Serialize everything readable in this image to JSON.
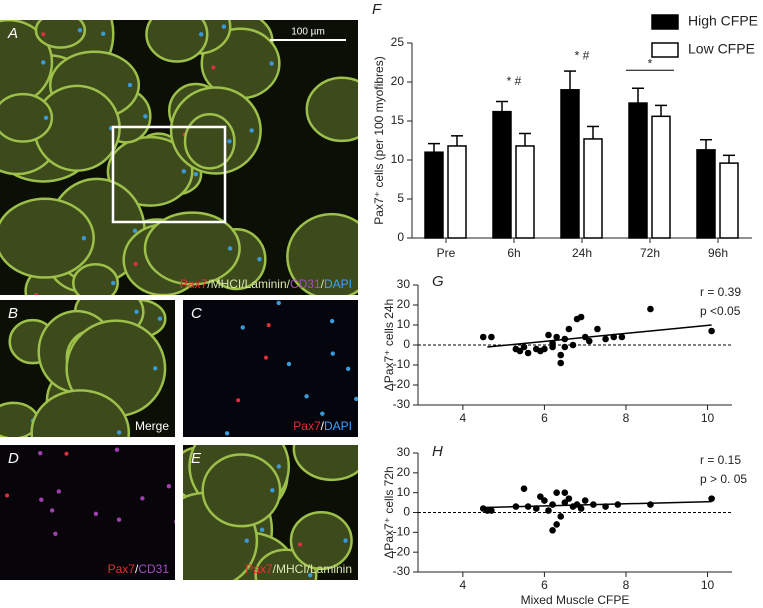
{
  "chart_data": [
    {
      "type": "bar",
      "panel_label": "F",
      "ylabel": "Pax7⁺ cells (per 100 myofibres)",
      "categories": [
        "Pre",
        "6h",
        "24h",
        "72h",
        "96h"
      ],
      "series": [
        {
          "name": "High CFPE",
          "color": "#000000",
          "values": [
            11.0,
            16.2,
            19.0,
            17.3,
            11.3
          ],
          "errors": [
            1.1,
            1.3,
            2.4,
            1.9,
            1.3
          ]
        },
        {
          "name": "Low CFPE",
          "color": "#ffffff",
          "values": [
            11.8,
            11.8,
            12.7,
            15.6,
            9.6
          ],
          "errors": [
            1.3,
            1.6,
            1.6,
            1.4,
            1.0
          ]
        }
      ],
      "ylim": [
        0,
        25
      ],
      "yticks": [
        0,
        5,
        10,
        15,
        20,
        25
      ],
      "legend": "top-right",
      "annotations": [
        {
          "text": "* #",
          "x": "6h",
          "y": 20
        },
        {
          "text": "* #",
          "x": "24h",
          "y": 23.3
        },
        {
          "text": "*",
          "x": "72h",
          "y": 21.5,
          "bracket": true
        }
      ]
    },
    {
      "type": "scatter",
      "panel_label": "G",
      "ylabel": "ΔPax7⁺ cells 24h",
      "x": [
        4.5,
        4.7,
        5.3,
        5.4,
        5.5,
        5.6,
        5.8,
        5.9,
        6.0,
        6.1,
        6.2,
        6.2,
        6.3,
        6.4,
        6.4,
        6.5,
        6.5,
        6.6,
        6.7,
        6.8,
        6.9,
        7.0,
        7.1,
        7.3,
        7.5,
        7.7,
        7.9,
        8.6,
        10.1
      ],
      "values": [
        4,
        4,
        -2,
        -3,
        -1,
        -4,
        -2,
        -3,
        -2,
        5,
        1,
        -1,
        4,
        -9,
        -5,
        -1,
        3,
        8,
        0,
        13,
        14,
        4,
        2,
        8,
        3,
        4,
        4,
        18,
        7
      ],
      "fit": {
        "x": [
          4.6,
          10.1
        ],
        "y": [
          -1,
          10
        ]
      },
      "stats": [
        "r = 0.39",
        "p <0.05"
      ],
      "xlim": [
        2.9,
        10.6
      ],
      "xticks": [
        4,
        6,
        8,
        10
      ],
      "ylim": [
        -30,
        30
      ],
      "yticks": [
        -30,
        -20,
        -10,
        0,
        10,
        20,
        30
      ],
      "zero_line": true
    },
    {
      "type": "scatter",
      "panel_label": "H",
      "ylabel": "ΔPax7⁺ cells 72h",
      "xlabel": "Mixed Muscle CFPE",
      "x": [
        4.5,
        4.6,
        4.7,
        5.3,
        5.5,
        5.6,
        5.8,
        5.9,
        6.0,
        6.1,
        6.2,
        6.2,
        6.3,
        6.3,
        6.4,
        6.5,
        6.5,
        6.6,
        6.7,
        6.8,
        6.9,
        7.0,
        7.2,
        7.5,
        7.8,
        8.6,
        10.1
      ],
      "values": [
        2,
        1,
        1,
        3,
        12,
        3,
        2,
        8,
        6,
        1,
        4,
        -9,
        10,
        -6,
        -2,
        10,
        5,
        7,
        3,
        4,
        2,
        6,
        4,
        3,
        4,
        4,
        7
      ],
      "fit": {
        "x": [
          4.5,
          10.1
        ],
        "y": [
          2.5,
          5.5
        ]
      },
      "stats": [
        "r = 0.15",
        "p > 0. 05"
      ],
      "xlim": [
        2.9,
        10.6
      ],
      "xticks": [
        4,
        6,
        8,
        10
      ],
      "ylim": [
        -30,
        30
      ],
      "yticks": [
        -30,
        -20,
        -10,
        0,
        10,
        20,
        30
      ],
      "zero_line": true
    }
  ],
  "image_panels": [
    {
      "label": "A",
      "scale_bar": "100 µm",
      "caption": [
        {
          "text": "Pax7",
          "color": "#e83030"
        },
        {
          "text": "/MHCI/Laminin/",
          "color": "#d8e8b0"
        },
        {
          "text": "CD31",
          "color": "#a050c0"
        },
        {
          "text": "/",
          "color": "#d8e8b0"
        },
        {
          "text": "DAPI",
          "color": "#40a0ff"
        }
      ]
    },
    {
      "label": "B",
      "caption": [
        {
          "text": "Merge",
          "color": "#ffffff"
        }
      ]
    },
    {
      "label": "C",
      "caption": [
        {
          "text": "Pax7",
          "color": "#e83030"
        },
        {
          "text": "/",
          "color": "#ffffff"
        },
        {
          "text": "DAPI",
          "color": "#40a0ff"
        }
      ]
    },
    {
      "label": "D",
      "caption": [
        {
          "text": "Pax7",
          "color": "#e83030"
        },
        {
          "text": "/",
          "color": "#ffffff"
        },
        {
          "text": "CD31",
          "color": "#a050c0"
        }
      ]
    },
    {
      "label": "E",
      "caption": [
        {
          "text": "Pax7",
          "color": "#e83030"
        },
        {
          "text": "/MHCI/Laminin",
          "color": "#d8e8b0"
        }
      ]
    }
  ]
}
